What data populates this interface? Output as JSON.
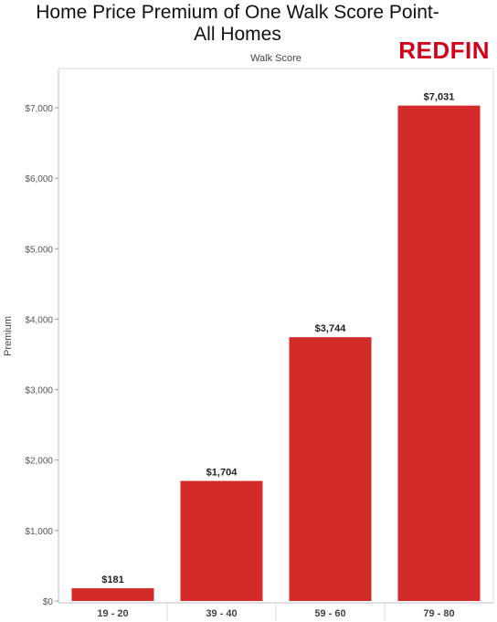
{
  "title": "Home Price Premium of One Walk Score Point-\nAll Homes",
  "title_lines": [
    "Home Price Premium of One Walk Score Point-",
    "All Homes"
  ],
  "logo_text": "REDFIN",
  "colors": {
    "bar": "#d32a2a",
    "logo": "#d0021b",
    "grid": "#e6e6e6"
  },
  "chart_data": {
    "type": "bar",
    "title": "Home Price Premium of One Walk Score Point- All Homes",
    "xlabel": "Walk Score",
    "ylabel": "Premium",
    "categories": [
      "19 - 20",
      "39 - 40",
      "59 - 60",
      "79 - 80"
    ],
    "values": [
      181,
      1704,
      3744,
      7031
    ],
    "value_labels": [
      "$181",
      "$1,704",
      "$3,744",
      "$7,031"
    ],
    "ylim": [
      0,
      7000
    ],
    "yticks": [
      0,
      1000,
      2000,
      3000,
      4000,
      5000,
      6000,
      7000
    ],
    "ytick_labels": [
      "$0",
      "$1,000",
      "$2,000",
      "$3,000",
      "$4,000",
      "$5,000",
      "$6,000",
      "$7,000"
    ],
    "grid": false,
    "legend": "none"
  }
}
